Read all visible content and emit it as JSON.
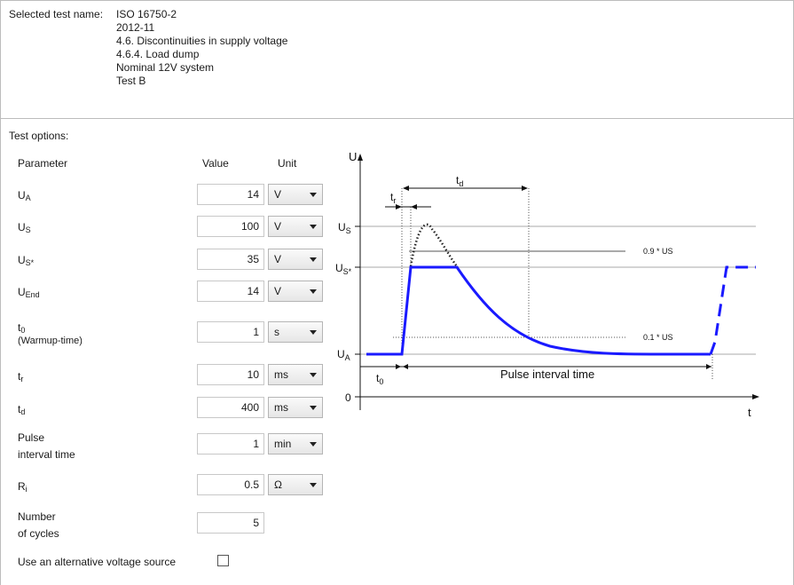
{
  "selected": {
    "label": "Selected test name:",
    "lines": [
      "ISO 16750-2",
      "2012-11",
      "4.6. Discontinuities in supply voltage",
      "4.6.4. Load dump",
      "Nominal 12V system",
      "Test B"
    ]
  },
  "options": {
    "title": "Test options:",
    "col_parameter": "Parameter",
    "col_value": "Value",
    "col_unit": "Unit",
    "rows": [
      {
        "name": "UA",
        "value": "14",
        "unit": "V"
      },
      {
        "name": "US",
        "value": "100",
        "unit": "V"
      },
      {
        "name": "US*",
        "value": "35",
        "unit": "V"
      },
      {
        "name": "UEnd",
        "value": "14",
        "unit": "V"
      },
      {
        "name": "t0",
        "sub_label": "(Warmup-time)",
        "value": "1",
        "unit": "s"
      },
      {
        "name": "tr",
        "value": "10",
        "unit": "ms"
      },
      {
        "name": "td",
        "value": "400",
        "unit": "ms"
      },
      {
        "name": "Pulse",
        "name2": "interval time",
        "value": "1",
        "unit": "min"
      },
      {
        "name": "Ri",
        "value": "0.5",
        "unit": "Ω"
      },
      {
        "name": "Number",
        "name2": "of cycles",
        "value": "5"
      }
    ],
    "alt_source_label": "Use an alternative voltage source",
    "alt_source_checked": false
  },
  "diagram": {
    "y_axis": "U",
    "x_axis": "t",
    "label_us": "U",
    "label_us_sub": "S",
    "label_usstar_sub": "S*",
    "label_ua_sub": "A",
    "label_zero": "0",
    "label_tr": "t",
    "label_tr_sub": "r",
    "label_td": "t",
    "label_td_sub": "d",
    "label_t0": "t",
    "label_t0_sub": "0",
    "label_09": "0.9 * US",
    "label_01": "0.1 * US",
    "label_interval": "Pulse interval time",
    "pulse_color": "#1a1aff"
  }
}
